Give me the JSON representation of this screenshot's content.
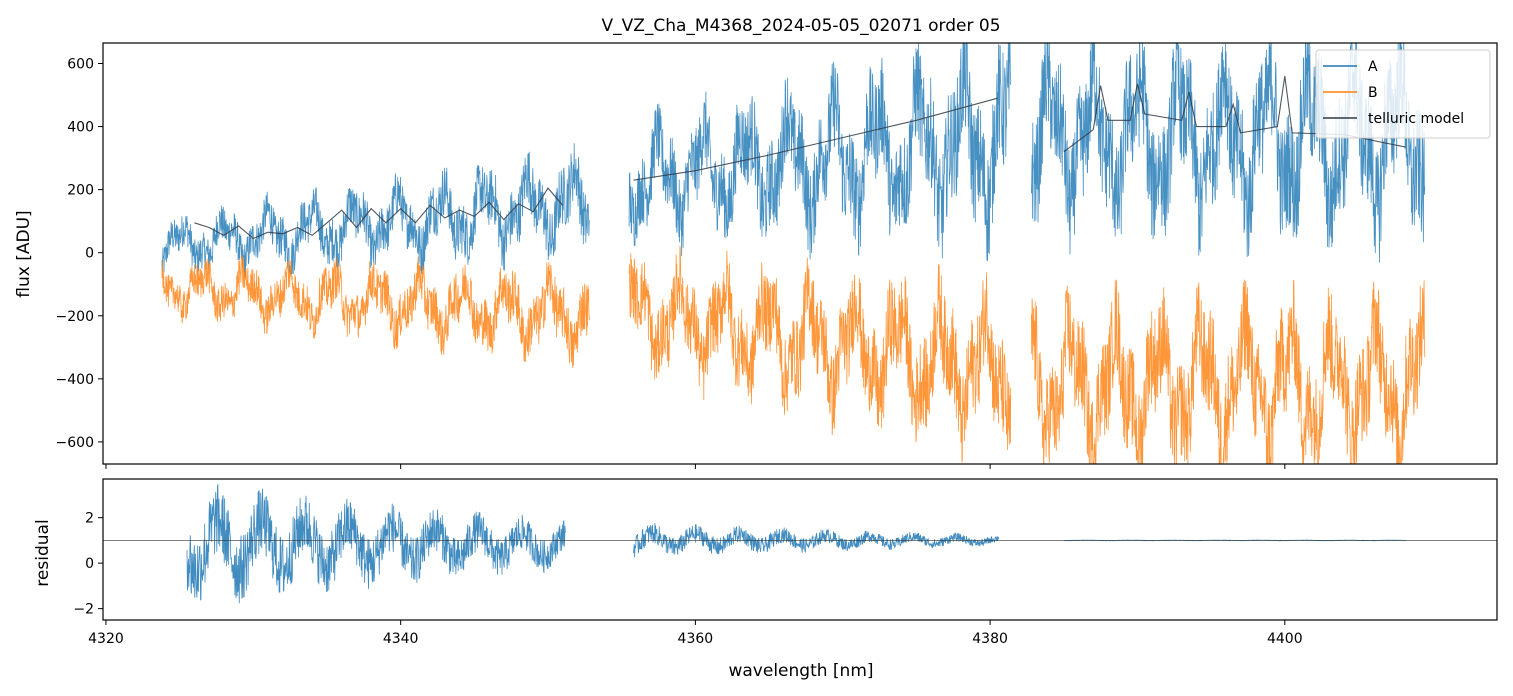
{
  "chart_data": [
    {
      "panel": "top",
      "type": "line",
      "title": "V_VZ_Cha_M4368_2024-05-05_02071  order 05",
      "xlabel": "",
      "ylabel": "flux [ADU]",
      "xlim": [
        4319.8,
        4414.4
      ],
      "ylim": [
        -670,
        665
      ],
      "xticks": [
        4320,
        4340,
        4360,
        4380,
        4400
      ],
      "yticks": [
        -600,
        -400,
        -200,
        0,
        200,
        400,
        600
      ],
      "ytick_labels": [
        "−600",
        "−400",
        "−200",
        "0",
        "200",
        "400",
        "600"
      ],
      "legend": {
        "location": "top-right",
        "entries": [
          "A",
          "B",
          "telluric model"
        ]
      },
      "series": [
        {
          "name": "A",
          "color": "#1f77b4",
          "segments": [
            {
              "x_range": [
                4323.8,
                4352.8
              ],
              "level_start": 20,
              "level_end": 160,
              "amplitude_start": 90,
              "amplitude_end": 170
            },
            {
              "x_range": [
                4355.5,
                4381.4
              ],
              "level_start": 230,
              "level_end": 360,
              "amplitude_start": 180,
              "amplitude_end": 330
            },
            {
              "x_range": [
                4382.8,
                4409.5
              ],
              "level_start": 360,
              "level_end": 360,
              "amplitude_start": 300,
              "amplitude_end": 330
            }
          ]
        },
        {
          "name": "B",
          "color": "#ff7f0e",
          "segments": [
            {
              "x_range": [
                4323.8,
                4352.8
              ],
              "level_start": -110,
              "level_end": -200,
              "amplitude_start": 90,
              "amplitude_end": 150
            },
            {
              "x_range": [
                4355.5,
                4381.4
              ],
              "level_start": -190,
              "level_end": -380,
              "amplitude_start": 180,
              "amplitude_end": 270
            },
            {
              "x_range": [
                4382.8,
                4409.5
              ],
              "level_start": -420,
              "level_end": -410,
              "amplitude_start": 270,
              "amplitude_end": 280
            }
          ]
        },
        {
          "name": "telluric model",
          "color": "#2f3a45",
          "segments": [
            {
              "x": [
                4326.0,
                4327.0,
                4328.0,
                4329.0,
                4330.0,
                4331.0,
                4332.0,
                4333.0,
                4334.0,
                4335.0,
                4336.0,
                4337.0,
                4338.0,
                4339.0,
                4340.0,
                4341.0,
                4342.0,
                4343.0,
                4344.0,
                4345.0,
                4346.0,
                4347.0,
                4348.0,
                4349.0,
                4350.0,
                4351.0
              ],
              "y": [
                95,
                80,
                55,
                85,
                45,
                65,
                60,
                80,
                55,
                95,
                135,
                80,
                140,
                95,
                140,
                95,
                150,
                110,
                135,
                115,
                160,
                105,
                155,
                130,
                205,
                150
              ]
            },
            {
              "x": [
                4355.8,
                4360.0,
                4365.0,
                4370.0,
                4375.0,
                4380.5
              ],
              "y": [
                230,
                260,
                310,
                365,
                420,
                490
              ]
            },
            {
              "x": [
                4385.0,
                4387.0,
                4387.5,
                4388.0,
                4389.5,
                4390.0,
                4390.5,
                4393.0,
                4393.5,
                4394.0,
                4396.0,
                4396.5,
                4397.0,
                4399.5,
                4400.0,
                4400.5,
                4404.0,
                4408.2
              ],
              "y": [
                320,
                390,
                530,
                420,
                420,
                535,
                440,
                420,
                510,
                400,
                400,
                470,
                380,
                400,
                560,
                380,
                375,
                335
              ]
            }
          ]
        }
      ]
    },
    {
      "panel": "bottom",
      "type": "line",
      "title": "",
      "xlabel": "wavelength [nm]",
      "ylabel": "residual",
      "xlim": [
        4319.8,
        4414.4
      ],
      "ylim": [
        -2.5,
        3.7
      ],
      "xticks": [
        4320,
        4340,
        4360,
        4380,
        4400
      ],
      "xtick_labels": [
        "4320",
        "4340",
        "4360",
        "4380",
        "4400"
      ],
      "yticks": [
        -2,
        0,
        2
      ],
      "ytick_labels": [
        "−2",
        "0",
        "2"
      ],
      "reference_line": 1.0,
      "series": [
        {
          "name": "residual",
          "color": "#1f77b4",
          "segments": [
            {
              "x_range": [
                4325.5,
                4351.2
              ],
              "level": 0.8,
              "amplitude_start": 2.8,
              "amplitude_end": 1.1
            },
            {
              "x_range": [
                4355.8,
                4380.6
              ],
              "level": 1.0,
              "amplitude_start": 0.8,
              "amplitude_end": 0.25
            },
            {
              "x_range": [
                4385.0,
                4408.2
              ],
              "level": 1.0,
              "amplitude_start": 0.02,
              "amplitude_end": 0.02
            }
          ]
        }
      ]
    }
  ]
}
